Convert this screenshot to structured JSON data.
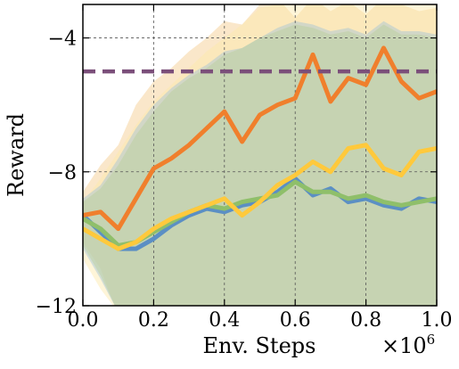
{
  "chart_data": {
    "type": "line",
    "xlabel": "Env. Steps",
    "ylabel": "Reward",
    "x_offset_label": "×10",
    "x_offset_exponent": "6",
    "xlim": [
      0.0,
      1.0
    ],
    "ylim": [
      -12,
      -3
    ],
    "x_ticks": [
      0.0,
      0.2,
      0.4,
      0.6,
      0.8,
      1.0
    ],
    "x_tick_labels": [
      "0.0",
      "0.2",
      "0.4",
      "0.6",
      "0.8",
      "1.0"
    ],
    "y_ticks": [
      -12,
      -8,
      -4
    ],
    "y_tick_labels": [
      "−12",
      "−8",
      "−4"
    ],
    "grid": true,
    "legend": "none",
    "reference_line": {
      "value": -5.0,
      "color": "#7b4f7a",
      "style": "dashed"
    },
    "x": [
      0.0,
      0.05,
      0.1,
      0.15,
      0.2,
      0.25,
      0.3,
      0.35,
      0.4,
      0.45,
      0.5,
      0.55,
      0.6,
      0.65,
      0.7,
      0.75,
      0.8,
      0.85,
      0.9,
      0.95,
      1.0
    ],
    "series": [
      {
        "color": "#f07f2c",
        "values": [
          -9.3,
          -9.2,
          -9.7,
          -8.8,
          -7.9,
          -7.6,
          -7.2,
          -6.7,
          -6.2,
          -7.1,
          -6.3,
          -6.0,
          -5.8,
          -4.5,
          -5.9,
          -5.2,
          -5.4,
          -4.3,
          -5.3,
          -5.8,
          -5.6
        ],
        "band_upper": [
          -8.6,
          -7.8,
          -7.2,
          -6.0,
          -5.3,
          -4.9,
          -4.4,
          -4.0,
          -3.5,
          -3.6,
          -3.0,
          -2.8,
          -3.4,
          -2.8,
          -3.2,
          -2.9,
          -3.3,
          -2.8,
          -3.0,
          -3.2,
          -3.1
        ],
        "band_lower": [
          -10.1,
          -10.9,
          -12.3,
          -12.2,
          -12.2,
          -12.2,
          -12.2,
          -12.2,
          -12.2,
          -12.2,
          -12.2,
          -12.2,
          -12.2,
          -12.2,
          -12.2,
          -12.2,
          -12.2,
          -12.2,
          -12.2,
          -12.2,
          -12.2
        ],
        "band_color": "#f5c98a"
      },
      {
        "color": "#ffc93c",
        "values": [
          -9.7,
          -10.0,
          -10.3,
          -10.1,
          -9.7,
          -9.4,
          -9.2,
          -9.0,
          -8.8,
          -9.3,
          -8.9,
          -8.4,
          -8.1,
          -7.7,
          -8.0,
          -7.3,
          -7.2,
          -7.9,
          -8.1,
          -7.4,
          -7.3
        ],
        "band_upper": [
          -8.9,
          -8.2,
          -7.4,
          -6.6,
          -5.9,
          -5.4,
          -4.9,
          -4.4,
          -4.0,
          -3.6,
          -3.1,
          -3.0,
          -3.0,
          -3.0,
          -3.0,
          -3.0,
          -3.0,
          -3.0,
          -3.0,
          -3.0,
          -3.0
        ],
        "band_lower": [
          -10.6,
          -11.5,
          -12.2,
          -12.2,
          -12.2,
          -12.2,
          -12.2,
          -12.2,
          -12.2,
          -12.2,
          -12.2,
          -12.2,
          -12.2,
          -12.2,
          -12.2,
          -12.2,
          -12.2,
          -12.2,
          -12.2,
          -12.2,
          -12.2
        ],
        "band_color": "#fde8a8"
      },
      {
        "color": "#5b8fc4",
        "values": [
          -9.3,
          -9.8,
          -10.3,
          -10.3,
          -10.0,
          -9.6,
          -9.3,
          -9.1,
          -9.2,
          -9.0,
          -8.9,
          -8.6,
          -8.2,
          -8.7,
          -8.5,
          -8.9,
          -8.8,
          -9.0,
          -9.1,
          -8.8,
          -8.9
        ],
        "band_upper": [
          -8.8,
          -8.4,
          -7.6,
          -6.7,
          -6.0,
          -5.5,
          -5.1,
          -4.8,
          -4.4,
          -4.3,
          -4.0,
          -3.7,
          -3.5,
          -3.6,
          -3.8,
          -3.7,
          -3.9,
          -3.5,
          -3.8,
          -3.8,
          -3.9
        ],
        "band_lower": [
          -10.3,
          -11.2,
          -12.2,
          -12.2,
          -12.2,
          -12.2,
          -12.2,
          -12.2,
          -12.2,
          -12.2,
          -12.2,
          -12.2,
          -12.2,
          -12.2,
          -12.2,
          -12.2,
          -12.2,
          -12.2,
          -12.2,
          -12.2,
          -12.2
        ],
        "band_color": "#9fc3d6"
      },
      {
        "color": "#8fbf6a",
        "values": [
          -9.4,
          -9.7,
          -10.2,
          -10.1,
          -9.8,
          -9.5,
          -9.2,
          -9.0,
          -9.1,
          -8.9,
          -8.8,
          -8.7,
          -8.3,
          -8.6,
          -8.6,
          -8.8,
          -8.7,
          -8.9,
          -9.0,
          -8.9,
          -8.8
        ],
        "band_upper": [
          -8.9,
          -8.5,
          -7.8,
          -6.9,
          -6.2,
          -5.6,
          -5.2,
          -4.9,
          -4.5,
          -4.3,
          -4.0,
          -3.8,
          -3.6,
          -3.7,
          -3.9,
          -3.8,
          -4.0,
          -3.6,
          -3.9,
          -3.9,
          -4.0
        ],
        "band_lower": [
          -10.2,
          -11.1,
          -12.2,
          -12.2,
          -12.2,
          -12.2,
          -12.2,
          -12.2,
          -12.2,
          -12.2,
          -12.2,
          -12.2,
          -12.2,
          -12.2,
          -12.2,
          -12.2,
          -12.2,
          -12.2,
          -12.2,
          -12.2,
          -12.2
        ],
        "band_color": "#b9cf9a"
      }
    ]
  }
}
